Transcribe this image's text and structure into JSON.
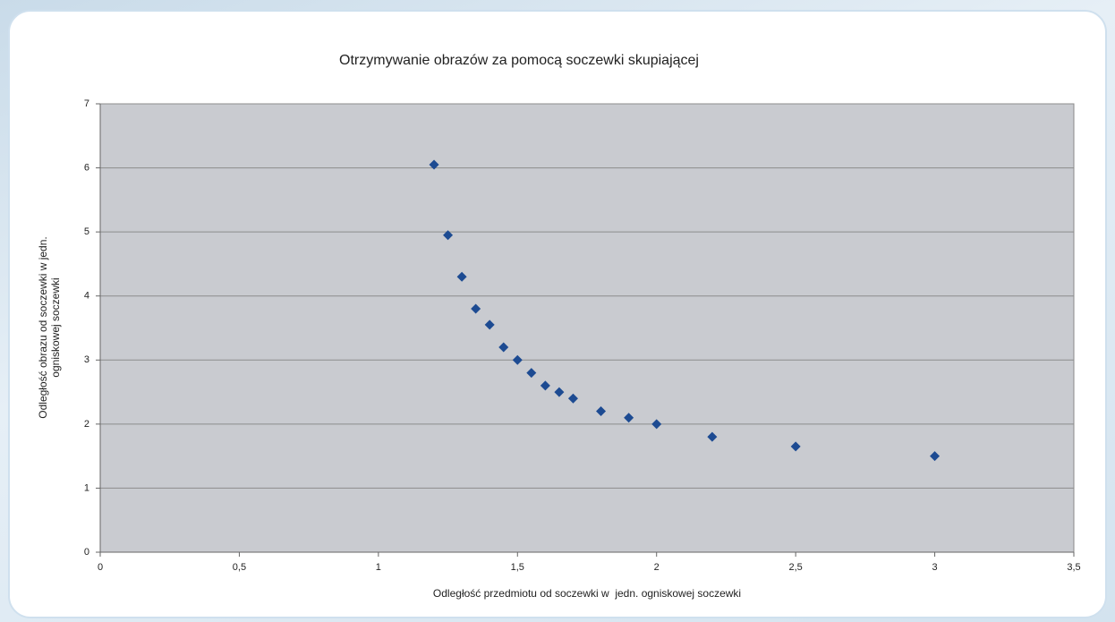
{
  "chart_data": {
    "type": "scatter",
    "title": "Otrzymywanie obrazów za pomocą soczewki skupiającej",
    "xlabel": "Odległość przedmiotu od soczewki w  jedn. ogniskowej soczewki",
    "ylabel": [
      "Odległość obrazu od soczewki w jedn.",
      "ogniskowej soczewki"
    ],
    "color": "#1d4b92",
    "grid": true,
    "xlim": [
      0,
      3.5
    ],
    "ylim": [
      0,
      7
    ],
    "xticks": [
      0,
      {
        "value": 0.5,
        "label": "0,5"
      },
      1,
      {
        "value": 1.5,
        "label": "1,5"
      },
      2,
      {
        "value": 2.5,
        "label": "2,5"
      },
      3,
      {
        "value": 3.5,
        "label": "3,5"
      }
    ],
    "yticks": [
      0,
      1,
      2,
      3,
      4,
      5,
      6,
      7
    ],
    "x": [
      1.2,
      1.25,
      1.3,
      1.35,
      1.4,
      1.45,
      1.5,
      1.55,
      1.6,
      1.65,
      1.7,
      1.8,
      1.9,
      2,
      2.2,
      2.5,
      3
    ],
    "values": [
      6.05,
      4.95,
      4.3,
      3.8,
      3.55,
      3.2,
      3.0,
      2.8,
      2.6,
      2.5,
      2.4,
      2.2,
      2.1,
      2.0,
      1.8,
      1.65,
      1.5
    ]
  }
}
